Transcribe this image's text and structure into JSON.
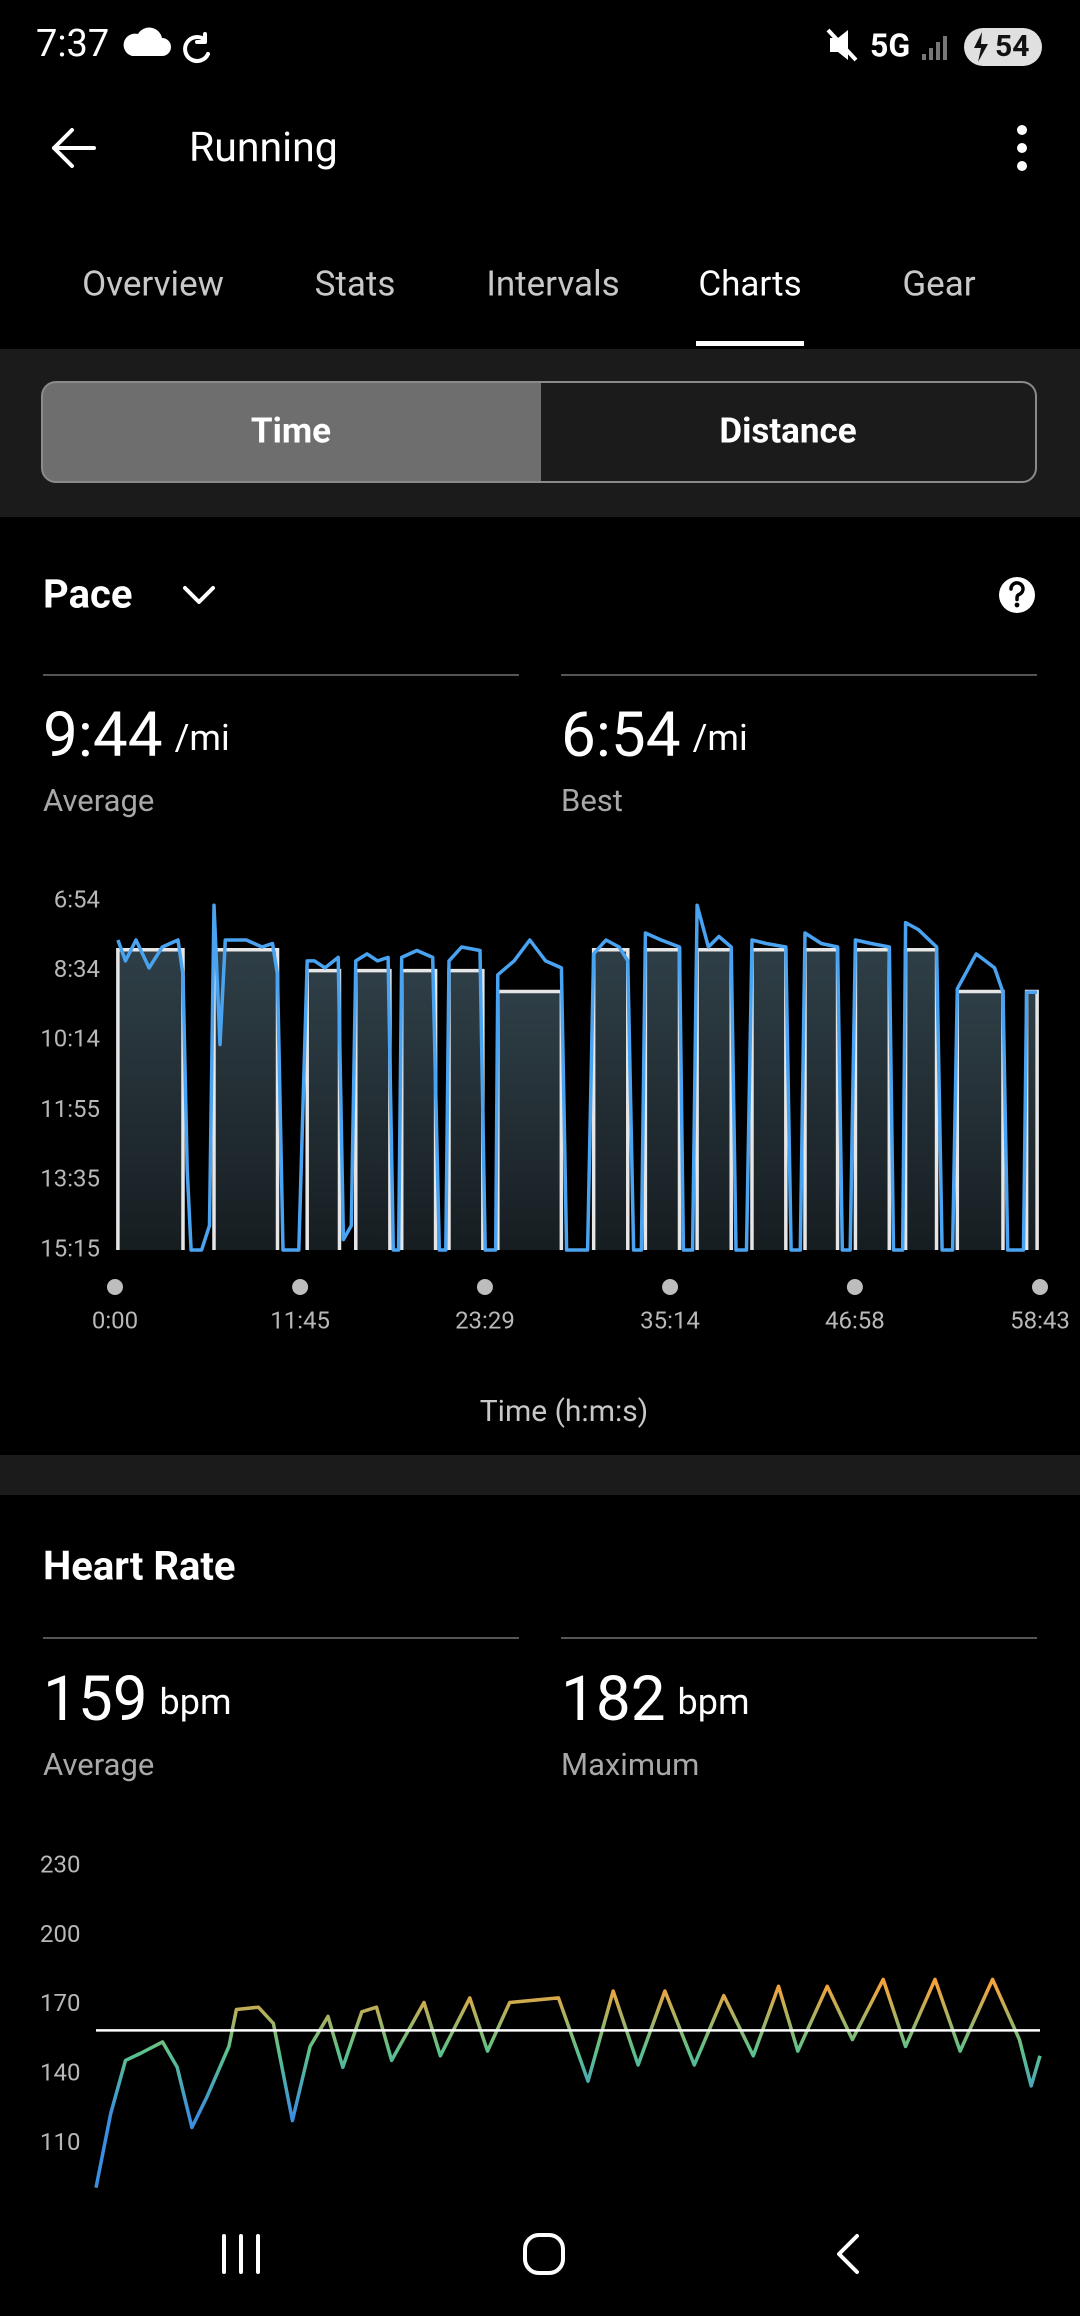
{
  "status_bar": {
    "time": "7:37",
    "network": "5G",
    "battery": "54"
  },
  "header": {
    "title": "Running"
  },
  "tabs": [
    "Overview",
    "Stats",
    "Intervals",
    "Charts",
    "Gear"
  ],
  "toggle": [
    "Time",
    "Distance"
  ],
  "pace": {
    "title": "Pace",
    "stats": [
      {
        "value": "9:44",
        "unit": "/mi",
        "label": "Average"
      },
      {
        "value": "6:54",
        "unit": "/mi",
        "label": "Best"
      }
    ],
    "chart_data": {
      "type": "line",
      "x_label": "Time (h:m:s)",
      "xlim": [
        0,
        3523
      ],
      "xticks": [
        {
          "value": 0,
          "label": "0:00"
        },
        {
          "value": 705,
          "label": "11:45"
        },
        {
          "value": 1409,
          "label": "23:29"
        },
        {
          "value": 2114,
          "label": "35:14"
        },
        {
          "value": 2818,
          "label": "46:58"
        },
        {
          "value": 3523,
          "label": "58:43"
        }
      ],
      "ylim": [
        414,
        915
      ],
      "y_inverted": true,
      "yticks": [
        {
          "value": 414,
          "label": "6:54"
        },
        {
          "value": 514,
          "label": "8:34"
        },
        {
          "value": 614,
          "label": "10:14"
        },
        {
          "value": 715,
          "label": "11:55"
        },
        {
          "value": 815,
          "label": "13:35"
        },
        {
          "value": 915,
          "label": "15:15"
        }
      ],
      "intervals": {
        "color": "#e6e6e6",
        "start": [
          11,
          377,
          732,
          917,
          1092,
          1272,
          1458,
          1823,
          2020,
          2217,
          2426,
          2628,
          2820,
          3011,
          3208,
          3472
        ],
        "end": [
          259,
          619,
          855,
          1047,
          1221,
          1401,
          1700,
          1953,
          2150,
          2347,
          2555,
          2752,
          2949,
          3129,
          3382,
          3512
        ],
        "values": [
          484,
          484,
          514,
          514,
          514,
          514,
          544,
          484,
          484,
          484,
          484,
          484,
          484,
          484,
          544,
          544
        ]
      },
      "series": [
        {
          "color": "#4aa3f0",
          "x": [
            11,
            40,
            80,
            130,
            180,
            240,
            259,
            275,
            290,
            330,
            360,
            377,
            400,
            420,
            500,
            560,
            600,
            619,
            640,
            700,
            732,
            760,
            800,
            850,
            870,
            900,
            917,
            960,
            1000,
            1040,
            1060,
            1080,
            1092,
            1150,
            1210,
            1235,
            1260,
            1272,
            1320,
            1390,
            1410,
            1450,
            1458,
            1520,
            1580,
            1640,
            1700,
            1720,
            1800,
            1823,
            1870,
            1920,
            1953,
            1975,
            2005,
            2020,
            2080,
            2150,
            2165,
            2200,
            2217,
            2260,
            2300,
            2347,
            2365,
            2405,
            2426,
            2480,
            2555,
            2575,
            2610,
            2628,
            2690,
            2752,
            2770,
            2800,
            2820,
            2880,
            2949,
            2965,
            3000,
            3011,
            3060,
            3129,
            3150,
            3190,
            3208,
            3280,
            3350,
            3382,
            3400,
            3460,
            3472,
            3512
          ],
          "values": [
            470,
            500,
            470,
            510,
            480,
            470,
            520,
            800,
            915,
            915,
            880,
            420,
            620,
            470,
            470,
            480,
            475,
            520,
            915,
            915,
            500,
            500,
            510,
            495,
            900,
            880,
            500,
            490,
            500,
            495,
            915,
            915,
            495,
            485,
            495,
            915,
            915,
            500,
            480,
            485,
            915,
            915,
            520,
            500,
            470,
            500,
            510,
            915,
            915,
            490,
            470,
            480,
            500,
            915,
            915,
            460,
            470,
            480,
            915,
            915,
            420,
            480,
            465,
            480,
            915,
            915,
            470,
            475,
            480,
            915,
            915,
            460,
            475,
            480,
            915,
            915,
            470,
            475,
            480,
            915,
            915,
            445,
            455,
            480,
            915,
            915,
            540,
            490,
            510,
            545,
            915,
            915,
            545,
            545
          ]
        }
      ]
    }
  },
  "heart_rate": {
    "title": "Heart Rate",
    "stats": [
      {
        "value": 159,
        "unit": "bpm",
        "label": "Average"
      },
      {
        "value": 182,
        "unit": "bpm",
        "label": "Maximum"
      }
    ],
    "chart_data": {
      "type": "line",
      "xlim": [
        0,
        3523
      ],
      "ylim": [
        90,
        230
      ],
      "yticks": [
        110,
        140,
        170,
        200,
        230
      ],
      "colors": [
        "#f2a33c",
        "#5cc28a",
        "#3b8ee0"
      ],
      "series": [
        {
          "x": [
            0,
            55,
            110,
            165,
            248,
            303,
            358,
            413,
            496,
            524,
            606,
            662,
            733,
            799,
            866,
            921,
            992,
            1047,
            1103,
            1224,
            1285,
            1395,
            1461,
            1544,
            1726,
            1836,
            1930,
            2023,
            2123,
            2233,
            2343,
            2453,
            2547,
            2619,
            2729,
            2823,
            2938,
            3021,
            3131,
            3225,
            3346,
            3446,
            3490,
            3523
          ],
          "values": [
            91,
            123,
            146,
            149,
            154,
            143,
            117,
            130,
            152,
            168,
            169,
            162,
            120,
            152,
            165,
            143,
            167,
            169,
            146,
            171,
            148,
            173,
            150,
            171,
            173,
            137,
            176,
            144,
            176,
            144,
            174,
            148,
            178,
            150,
            178,
            155,
            181,
            152,
            181,
            150,
            181,
            155,
            135,
            148
          ]
        }
      ]
    }
  }
}
